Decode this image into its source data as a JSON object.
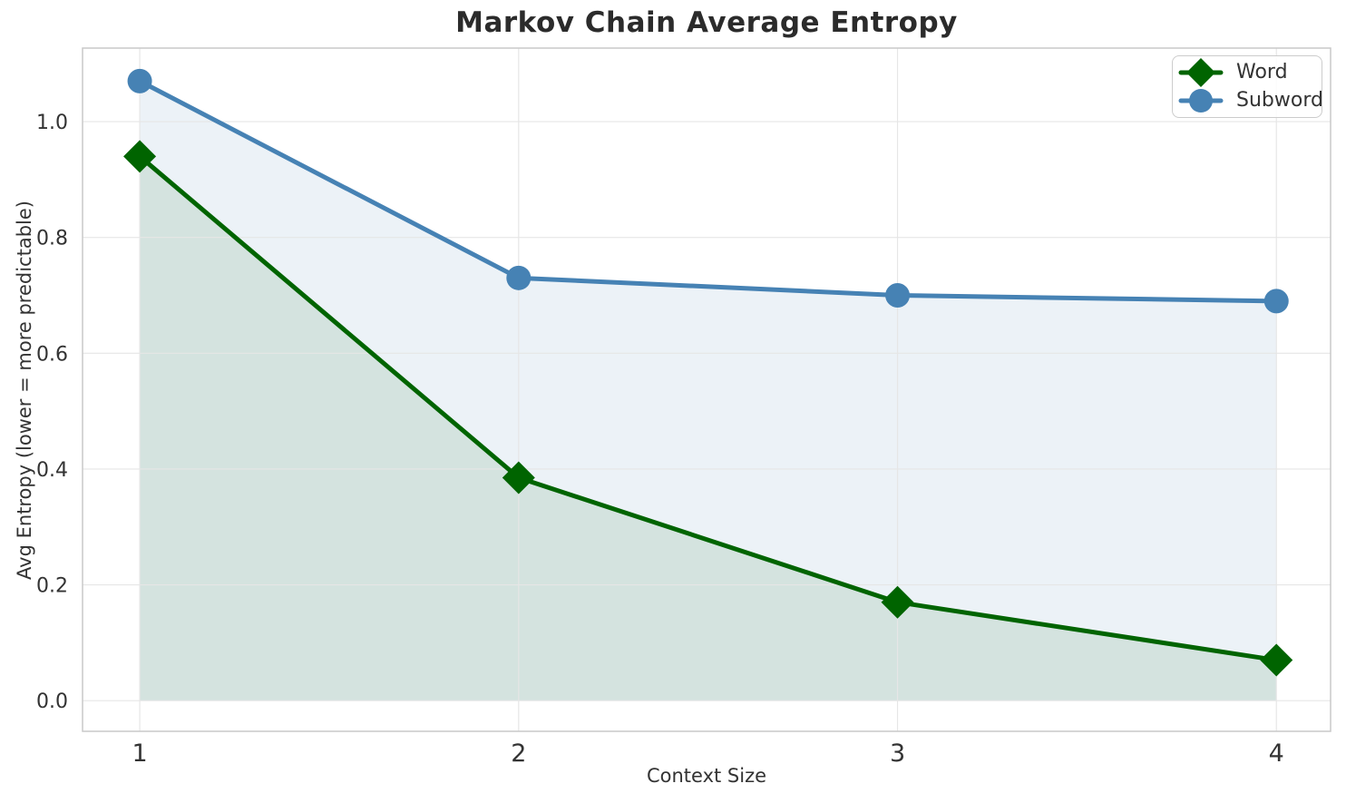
{
  "chart_data": {
    "type": "line",
    "title": "Markov Chain Average Entropy",
    "xlabel": "Context Size",
    "ylabel": "Avg Entropy (lower = more predictable)",
    "x": [
      1,
      2,
      3,
      4
    ],
    "xtick_labels": [
      "1",
      "2",
      "3",
      "4"
    ],
    "yticks": [
      0,
      0.2,
      0.4,
      0.6,
      0.8,
      1.0
    ],
    "ytick_labels": [
      "0.0",
      "0.2",
      "0.4",
      "0.6",
      "0.8",
      "1.0"
    ],
    "xlim": [
      0.849,
      4.143
    ],
    "ylim": [
      -0.053,
      1.127
    ],
    "grid": true,
    "legend_position": "upper right",
    "fill_to_zero": true,
    "fill_alpha": 0.1,
    "line_width": 5,
    "series": [
      {
        "name": "Word",
        "marker": "diamond",
        "color": "#006400",
        "values": [
          0.94,
          0.385,
          0.17,
          0.07
        ]
      },
      {
        "name": "Subword",
        "marker": "circle",
        "color": "#4682b4",
        "values": [
          1.07,
          0.73,
          0.7,
          0.69
        ]
      }
    ]
  },
  "colors": {
    "background": "#ffffff",
    "grid": "#e6e6e6",
    "spine": "#c9c9c9",
    "tick_text": "#333333",
    "title_text": "#2b2b2b",
    "legend_border": "#cccccc"
  }
}
